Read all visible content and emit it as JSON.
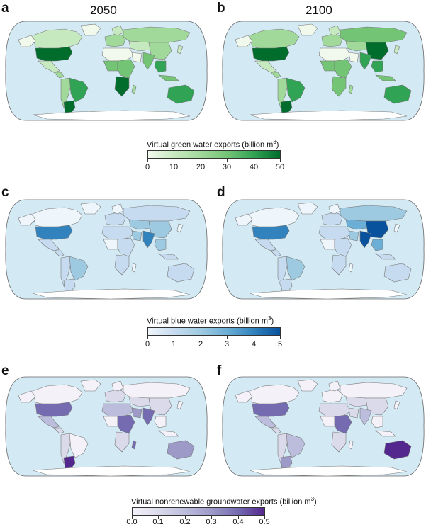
{
  "panels": [
    {
      "letter": "a",
      "title": "2050"
    },
    {
      "letter": "b",
      "title": "2100"
    },
    {
      "letter": "c",
      "title": ""
    },
    {
      "letter": "d",
      "title": ""
    },
    {
      "letter": "e",
      "title": ""
    },
    {
      "letter": "f",
      "title": ""
    }
  ],
  "legends": {
    "green": {
      "title": "Virtual green water exports (billion m",
      "sup": "3",
      "close": ")",
      "ticks": [
        "0",
        "10",
        "20",
        "30",
        "40",
        "50"
      ],
      "colors": [
        "#f1f9ed",
        "#c7e9c0",
        "#a1d99b",
        "#74c476",
        "#31a354",
        "#006d2c"
      ]
    },
    "blue": {
      "title": "Virtual blue water exports (billion m",
      "sup": "3",
      "close": ")",
      "ticks": [
        "0",
        "1",
        "2",
        "3",
        "4",
        "5"
      ],
      "colors": [
        "#eef5fb",
        "#c6dbef",
        "#9ecae1",
        "#6baed6",
        "#3182bd",
        "#08519c"
      ]
    },
    "purple": {
      "title": "Virtual nonrenewable groundwater exports (billion m",
      "sup": "3",
      "close": ")",
      "ticks": [
        "0.0",
        "0.1",
        "0.2",
        "0.3",
        "0.4",
        "0.5"
      ],
      "colors": [
        "#f4f2f8",
        "#dadaeb",
        "#bcbddc",
        "#9e9ac8",
        "#756bb1",
        "#54278f"
      ]
    }
  },
  "colors": {
    "ocean": "#d3eaf5",
    "border": "#777777"
  }
}
